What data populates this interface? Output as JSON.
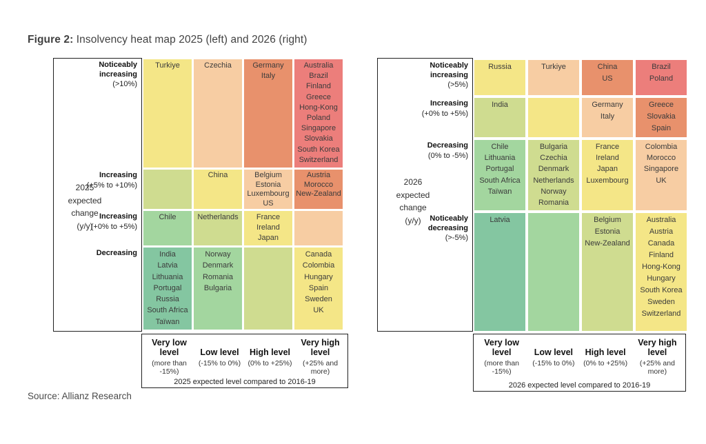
{
  "title": {
    "bold": "Figure 2:",
    "rest": " Insolvency heat map 2025 (left) and 2026 (right)"
  },
  "source": "Source: Allianz Research",
  "colors": {
    "teal": "#84c6a1",
    "green": "#a3d69f",
    "yellowgreen": "#cfdc90",
    "yellow": "#f4e687",
    "peach": "#f7cda3",
    "orange": "#e8916c",
    "salmon": "#ec7e7b"
  },
  "chart_data": [
    {
      "type": "heatmap",
      "year": "2025",
      "axis_label": "2025\nexpected\nchange\n(y/y)",
      "row_labels": [
        {
          "bold": "Noticeably increasing",
          "note": "(>10%)"
        },
        {
          "bold": "Increasing",
          "note": "(+5% to +10%)"
        },
        {
          "bold": "Increasing",
          "note": "(+0% to +5%)"
        },
        {
          "bold": "Decreasing",
          "note": ""
        }
      ],
      "cells": [
        [
          {
            "color": "yellow",
            "countries": [
              "Turkiye"
            ]
          },
          {
            "color": "peach",
            "countries": [
              "Czechia"
            ]
          },
          {
            "color": "orange",
            "countries": [
              "Germany",
              "Italy"
            ]
          },
          {
            "color": "salmon",
            "countries": [
              "Australia",
              "Brazil",
              "Finland",
              "Greece",
              "Hong-Kong",
              "Poland",
              "Singapore",
              "Slovakia",
              "South Korea",
              "Switzerland"
            ]
          }
        ],
        [
          {
            "color": "yellowgreen",
            "countries": []
          },
          {
            "color": "yellow",
            "countries": [
              "China"
            ]
          },
          {
            "color": "peach",
            "countries": [
              "Belgium",
              "Estonia",
              "Luxembourg",
              "US"
            ]
          },
          {
            "color": "orange",
            "countries": [
              "Austria",
              "Morocco",
              "New-Zealand"
            ]
          }
        ],
        [
          {
            "color": "green",
            "countries": [
              "Chile"
            ]
          },
          {
            "color": "yellowgreen",
            "countries": [
              "Netherlands"
            ]
          },
          {
            "color": "yellow",
            "countries": [
              "France",
              "Ireland",
              "Japan"
            ]
          },
          {
            "color": "peach",
            "countries": []
          }
        ],
        [
          {
            "color": "teal",
            "countries": [
              "India",
              "Latvia",
              "Lithuania",
              "Portugal",
              "Russia",
              "South Africa",
              "Taïwan"
            ]
          },
          {
            "color": "green",
            "countries": [
              "Norway",
              "Denmark",
              "Romania",
              "Bulgaria"
            ]
          },
          {
            "color": "yellowgreen",
            "countries": []
          },
          {
            "color": "yellow",
            "countries": [
              "Canada",
              "Colombia",
              "Hungary",
              "Spain",
              "Sweden",
              "UK"
            ]
          }
        ]
      ],
      "legend": {
        "columns": [
          {
            "title": "Very low level",
            "range": "(more than -15%)"
          },
          {
            "title": "Low level",
            "range": "(-15% to 0%)"
          },
          {
            "title": "High level",
            "range": "(0% to +25%)"
          },
          {
            "title": "Very high level",
            "range": "(+25% and more)"
          }
        ],
        "footer": "2025 expected level compared to 2016-19"
      }
    },
    {
      "type": "heatmap",
      "year": "2026",
      "axis_label": "2026\nexpected\nchange\n(y/y)",
      "row_labels": [
        {
          "bold": "Noticeably increasing",
          "note": "(>5%)"
        },
        {
          "bold": "Increasing",
          "note": "(+0% to +5%)"
        },
        {
          "bold": "Decreasing",
          "note": "(0% to -5%)"
        },
        {
          "bold": "Noticeably decreasing",
          "note": "(>-5%)"
        }
      ],
      "cells": [
        [
          {
            "color": "yellow",
            "countries": [
              "Russia"
            ]
          },
          {
            "color": "peach",
            "countries": [
              "Turkiye"
            ]
          },
          {
            "color": "orange",
            "countries": [
              "China",
              "US"
            ]
          },
          {
            "color": "salmon",
            "countries": [
              "Brazil",
              "Poland"
            ]
          }
        ],
        [
          {
            "color": "yellowgreen",
            "countries": [
              "India"
            ]
          },
          {
            "color": "yellow",
            "countries": []
          },
          {
            "color": "peach",
            "countries": [
              "Germany",
              "Italy"
            ]
          },
          {
            "color": "orange",
            "countries": [
              "Greece",
              "Slovakia",
              "Spain"
            ]
          }
        ],
        [
          {
            "color": "green",
            "countries": [
              "Chile",
              "Lithuania",
              "Portugal",
              "South Africa",
              "Taïwan"
            ]
          },
          {
            "color": "yellowgreen",
            "countries": [
              "Bulgaria",
              "Czechia",
              "Denmark",
              "Netherlands",
              "Norway",
              "Romania"
            ]
          },
          {
            "color": "yellow",
            "countries": [
              "France",
              "Ireland",
              "Japan",
              "Luxembourg"
            ]
          },
          {
            "color": "peach",
            "countries": [
              "Colombia",
              "Morocco",
              "Singapore",
              "UK"
            ]
          }
        ],
        [
          {
            "color": "teal",
            "countries": [
              "Latvia"
            ]
          },
          {
            "color": "green",
            "countries": []
          },
          {
            "color": "yellowgreen",
            "countries": [
              "Belgium",
              "Estonia",
              "New-Zealand"
            ]
          },
          {
            "color": "yellow",
            "countries": [
              "Australia",
              "Austria",
              "Canada",
              "Finland",
              "Hong-Kong",
              "Hungary",
              "South Korea",
              "Sweden",
              "Switzerland"
            ]
          }
        ]
      ],
      "legend": {
        "columns": [
          {
            "title": "Very low level",
            "range": "(more than -15%)"
          },
          {
            "title": "Low level",
            "range": "(-15% to 0%)"
          },
          {
            "title": "High level",
            "range": "(0% to +25%)"
          },
          {
            "title": "Very high level",
            "range": "(+25% and more)"
          }
        ],
        "footer": "2026 expected level compared to 2016-19"
      }
    }
  ]
}
